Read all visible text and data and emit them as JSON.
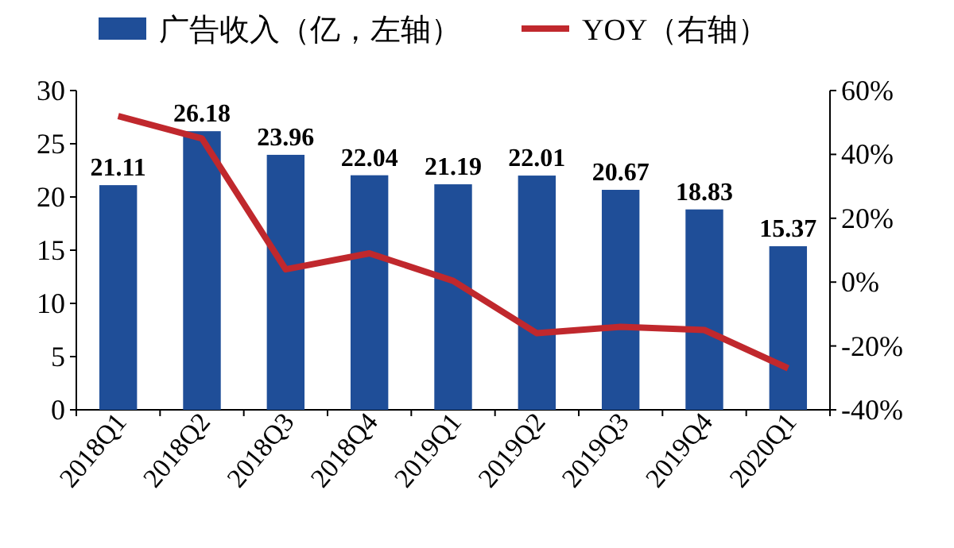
{
  "chart_data": {
    "type": "bar",
    "categories": [
      "2018Q1",
      "2018Q2",
      "2018Q3",
      "2018Q4",
      "2019Q1",
      "2019Q2",
      "2019Q3",
      "2019Q4",
      "2020Q1"
    ],
    "series": [
      {
        "name": "广告收入（亿，左轴）",
        "color": "#1f4e98",
        "values": [
          21.11,
          26.18,
          23.96,
          22.04,
          21.19,
          22.01,
          20.67,
          18.83,
          15.37
        ],
        "value_labels": [
          "21.11",
          "26.18",
          "23.96",
          "22.04",
          "21.19",
          "22.01",
          "20.67",
          "18.83",
          "15.37"
        ]
      },
      {
        "name": "YOY（右轴）",
        "type": "line",
        "axis": "y2",
        "color": "#c0282d",
        "values": [
          52,
          45,
          4,
          9,
          0.4,
          -16,
          -14,
          -15,
          -27
        ]
      }
    ],
    "ylim": [
      0,
      30
    ],
    "yticks": [
      0,
      5,
      10,
      15,
      20,
      25,
      30
    ],
    "y2lim": [
      -40,
      60
    ],
    "y2ticks": [
      {
        "value": -40,
        "label": "-40%"
      },
      {
        "value": -20,
        "label": "-20%"
      },
      {
        "value": 0,
        "label": "0%"
      },
      {
        "value": 20,
        "label": "20%"
      },
      {
        "value": 40,
        "label": "40%"
      },
      {
        "value": 60,
        "label": "60%"
      }
    ],
    "legend": "top",
    "grid": false,
    "marker": "none",
    "line_style": "solid"
  }
}
